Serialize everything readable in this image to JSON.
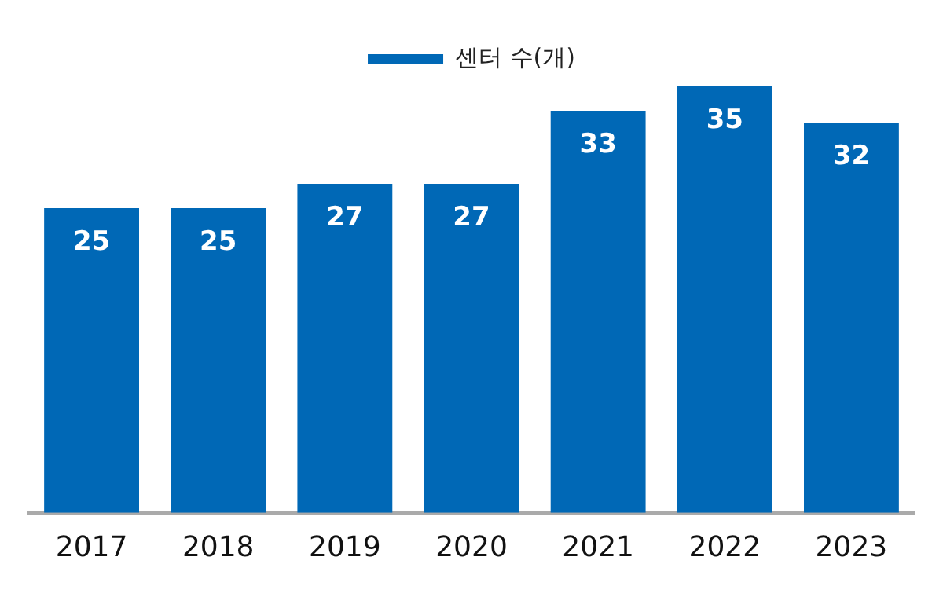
{
  "chart_data": {
    "type": "bar",
    "categories": [
      "2017",
      "2018",
      "2019",
      "2020",
      "2021",
      "2022",
      "2023"
    ],
    "series": [
      {
        "name": "센터 수(개)",
        "color": "#0068b6",
        "values": [
          25,
          25,
          27,
          27,
          33,
          35,
          32
        ]
      }
    ],
    "data_labels": true,
    "legend": "top",
    "grid": false,
    "tick_labels": "x"
  }
}
